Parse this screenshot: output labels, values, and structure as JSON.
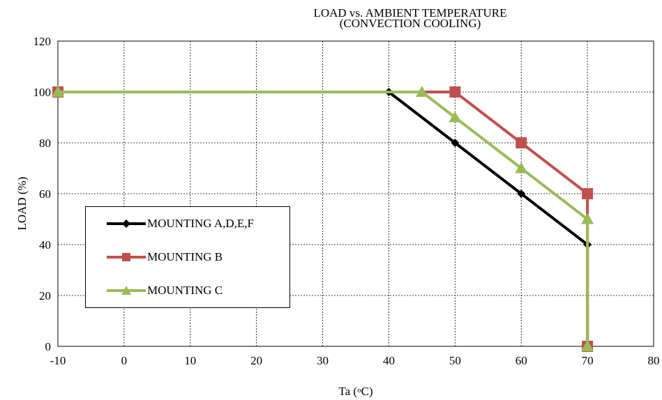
{
  "chart_data": {
    "type": "line",
    "title": "LOAD vs. AMBIENT TEMPERATURE",
    "subtitle": "(CONVECTION COOLING)",
    "xlabel": "Ta (oC)",
    "ylabel": "LOAD (%)",
    "xlim": [
      -10,
      80
    ],
    "ylim": [
      0,
      120
    ],
    "xticks": [
      -10,
      0,
      10,
      20,
      30,
      40,
      50,
      60,
      70,
      80
    ],
    "yticks": [
      0,
      20,
      40,
      60,
      80,
      100,
      120
    ],
    "grid": true,
    "legend_position": "left",
    "series": [
      {
        "name": "MOUNTING A,D,E,F",
        "color": "#000000",
        "marker": "diamond",
        "x": [
          -10,
          40,
          50,
          60,
          70,
          70
        ],
        "y": [
          100,
          100,
          80,
          60,
          40,
          0
        ]
      },
      {
        "name": "MOUNTING B",
        "color": "#c0504d",
        "marker": "square",
        "x": [
          -10,
          50,
          60,
          70,
          70
        ],
        "y": [
          100,
          100,
          80,
          60,
          0
        ]
      },
      {
        "name": "MOUNTING C",
        "color": "#9bbb59",
        "marker": "triangle",
        "x": [
          -10,
          45,
          50,
          60,
          70,
          70
        ],
        "y": [
          100,
          100,
          90,
          70,
          50,
          0
        ]
      }
    ]
  }
}
